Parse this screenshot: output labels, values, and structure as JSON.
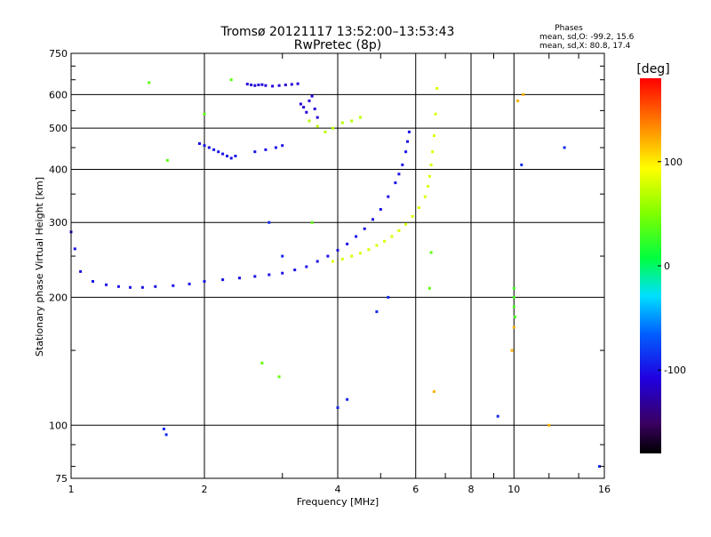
{
  "chart_data": {
    "type": "scatter",
    "title": "Tromsø 20121117 13:52:00–13:53:43",
    "subtitle": "RwPretec (8p)",
    "xlabel": "Frequency [MHz]",
    "ylabel": "Stationary phase Virtual Height [km]",
    "x_scale": "log",
    "y_scale": "log",
    "xlim": [
      1,
      16
    ],
    "ylim": [
      75,
      750
    ],
    "x_ticks": [
      1,
      2,
      4,
      6,
      8,
      10,
      16
    ],
    "x_tick_labels": [
      "1",
      "2",
      "4",
      "6",
      "8",
      "10",
      "16"
    ],
    "y_ticks": [
      75,
      100,
      200,
      300,
      400,
      500,
      600,
      750
    ],
    "y_tick_labels": [
      "75",
      "100",
      "200",
      "300",
      "400",
      "500",
      "600",
      "750"
    ],
    "grid": true,
    "stats": {
      "heading": "Phases",
      "line_o": "mean, sd,O: -99.2, 15.6",
      "line_x": "mean, sd,X:  80.8, 17.4"
    },
    "colorbar": {
      "label": "[deg]",
      "range": [
        -180,
        180
      ],
      "ticks": [
        100,
        0,
        -100
      ],
      "tick_labels": [
        "100",
        "0",
        "-100"
      ]
    },
    "series": [
      {
        "x": [
          1.0,
          1.02,
          1.05,
          1.12,
          1.2,
          1.28,
          1.36,
          1.45,
          1.55,
          1.7,
          1.85,
          2.0,
          2.2,
          2.4,
          2.6,
          2.8,
          3.0,
          3.2,
          3.4,
          3.6,
          3.8,
          4.0,
          4.2,
          4.4,
          4.6,
          4.8,
          5.0,
          5.2,
          5.4,
          5.5,
          5.6,
          5.7,
          5.75,
          5.8
        ],
        "y": [
          285,
          260,
          230,
          218,
          214,
          212,
          211,
          211,
          212,
          213,
          215,
          218,
          220,
          222,
          224,
          226,
          228,
          232,
          236,
          243,
          250,
          258,
          267,
          278,
          290,
          305,
          322,
          345,
          372,
          390,
          410,
          440,
          465,
          490
        ],
        "phase": -100
      },
      {
        "x": [
          3.9,
          4.1,
          4.3,
          4.5,
          4.7,
          4.9,
          5.1,
          5.3,
          5.5,
          5.7,
          5.9,
          6.1,
          6.3,
          6.4,
          6.45,
          6.5,
          6.55,
          6.6,
          6.65,
          6.7
        ],
        "y": [
          243,
          246,
          250,
          254,
          259,
          265,
          271,
          278,
          287,
          297,
          310,
          325,
          345,
          365,
          385,
          410,
          440,
          480,
          540,
          620
        ],
        "phase": 82
      },
      {
        "x": [
          2.5,
          2.55,
          2.6,
          2.65,
          2.7,
          2.75,
          2.85,
          2.95,
          3.05,
          3.15,
          3.25
        ],
        "y": [
          635,
          632,
          630,
          632,
          633,
          630,
          628,
          630,
          632,
          634,
          636
        ],
        "phase": -110
      },
      {
        "x": [
          3.3,
          3.35,
          3.4,
          3.45,
          3.5,
          3.55,
          3.6
        ],
        "y": [
          570,
          560,
          545,
          580,
          595,
          555,
          530
        ],
        "phase": -110
      },
      {
        "x": [
          1.95,
          2.0,
          2.05,
          2.1,
          2.15,
          2.2,
          2.25,
          2.3,
          2.35,
          2.6,
          2.75,
          2.9,
          3.0
        ],
        "y": [
          460,
          455,
          450,
          445,
          440,
          435,
          430,
          425,
          430,
          440,
          445,
          450,
          455
        ],
        "phase": -100
      },
      {
        "x": [
          3.45,
          3.6,
          3.75,
          3.9,
          4.1,
          4.3,
          4.5
        ],
        "y": [
          520,
          505,
          490,
          500,
          515,
          520,
          530
        ],
        "phase": 70
      },
      {
        "x": [
          10.0,
          10.0,
          10.0,
          10.05
        ],
        "y": [
          210,
          200,
          190,
          180
        ],
        "phase": 30
      },
      {
        "x": [
          1.5,
          1.65,
          2.0,
          2.3,
          2.7,
          2.95,
          3.5,
          6.45,
          6.5
        ],
        "y": [
          640,
          420,
          540,
          650,
          140,
          130,
          300,
          210,
          255
        ],
        "phase": 40
      },
      {
        "x": [
          1.62,
          1.64,
          2.8,
          3.0,
          5.2,
          9.2,
          10.4,
          13.0,
          15.6,
          4.9,
          4.2,
          4.0
        ],
        "y": [
          98,
          95,
          300,
          250,
          200,
          105,
          410,
          450,
          80,
          185,
          115,
          110
        ],
        "phase": -90
      },
      {
        "x": [
          10.2,
          10.5,
          12.0,
          10.0,
          9.9,
          6.6
        ],
        "y": [
          580,
          600,
          100,
          170,
          150,
          120
        ],
        "phase": 120
      }
    ]
  }
}
